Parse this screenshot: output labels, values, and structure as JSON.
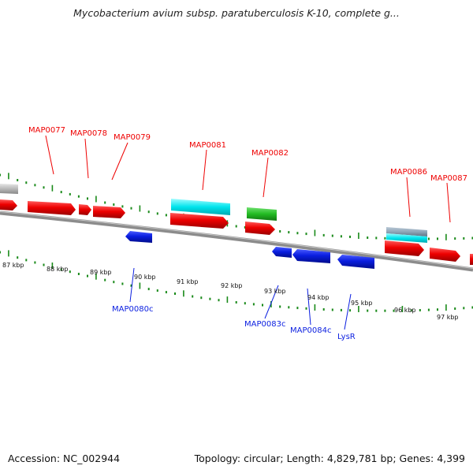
{
  "title": "Mycobacterium avium subsp. paratuberculosis K-10, complete g...",
  "footer": {
    "accession": "Accession: NC_002944",
    "summary": "Topology: circular; Length: 4,829,781 bp; Genes: 4,399"
  },
  "colors": {
    "forward_gene": "#ee0000",
    "reverse_gene": "#0a1ee0",
    "tick": "#1a8a1a",
    "backbone": "#8c8c8c",
    "cyan_feature": "#00e4ec",
    "green_feature": "#22bb22",
    "gray_feature": "#b8b8b8"
  },
  "forward_labels": [
    "MAP0077",
    "MAP0078",
    "MAP0079",
    "MAP0081",
    "MAP0082",
    "MAP0086",
    "MAP0087"
  ],
  "reverse_labels": [
    "MAP0080c",
    "MAP0083c",
    "MAP0084c",
    "LysR"
  ],
  "kbp_labels": [
    "87 kbp",
    "88 kbp",
    "89 kbp",
    "90 kbp",
    "91 kbp",
    "92 kbp",
    "93 kbp",
    "94 kbp",
    "95 kbp",
    "96 kbp",
    "97 kbp"
  ]
}
